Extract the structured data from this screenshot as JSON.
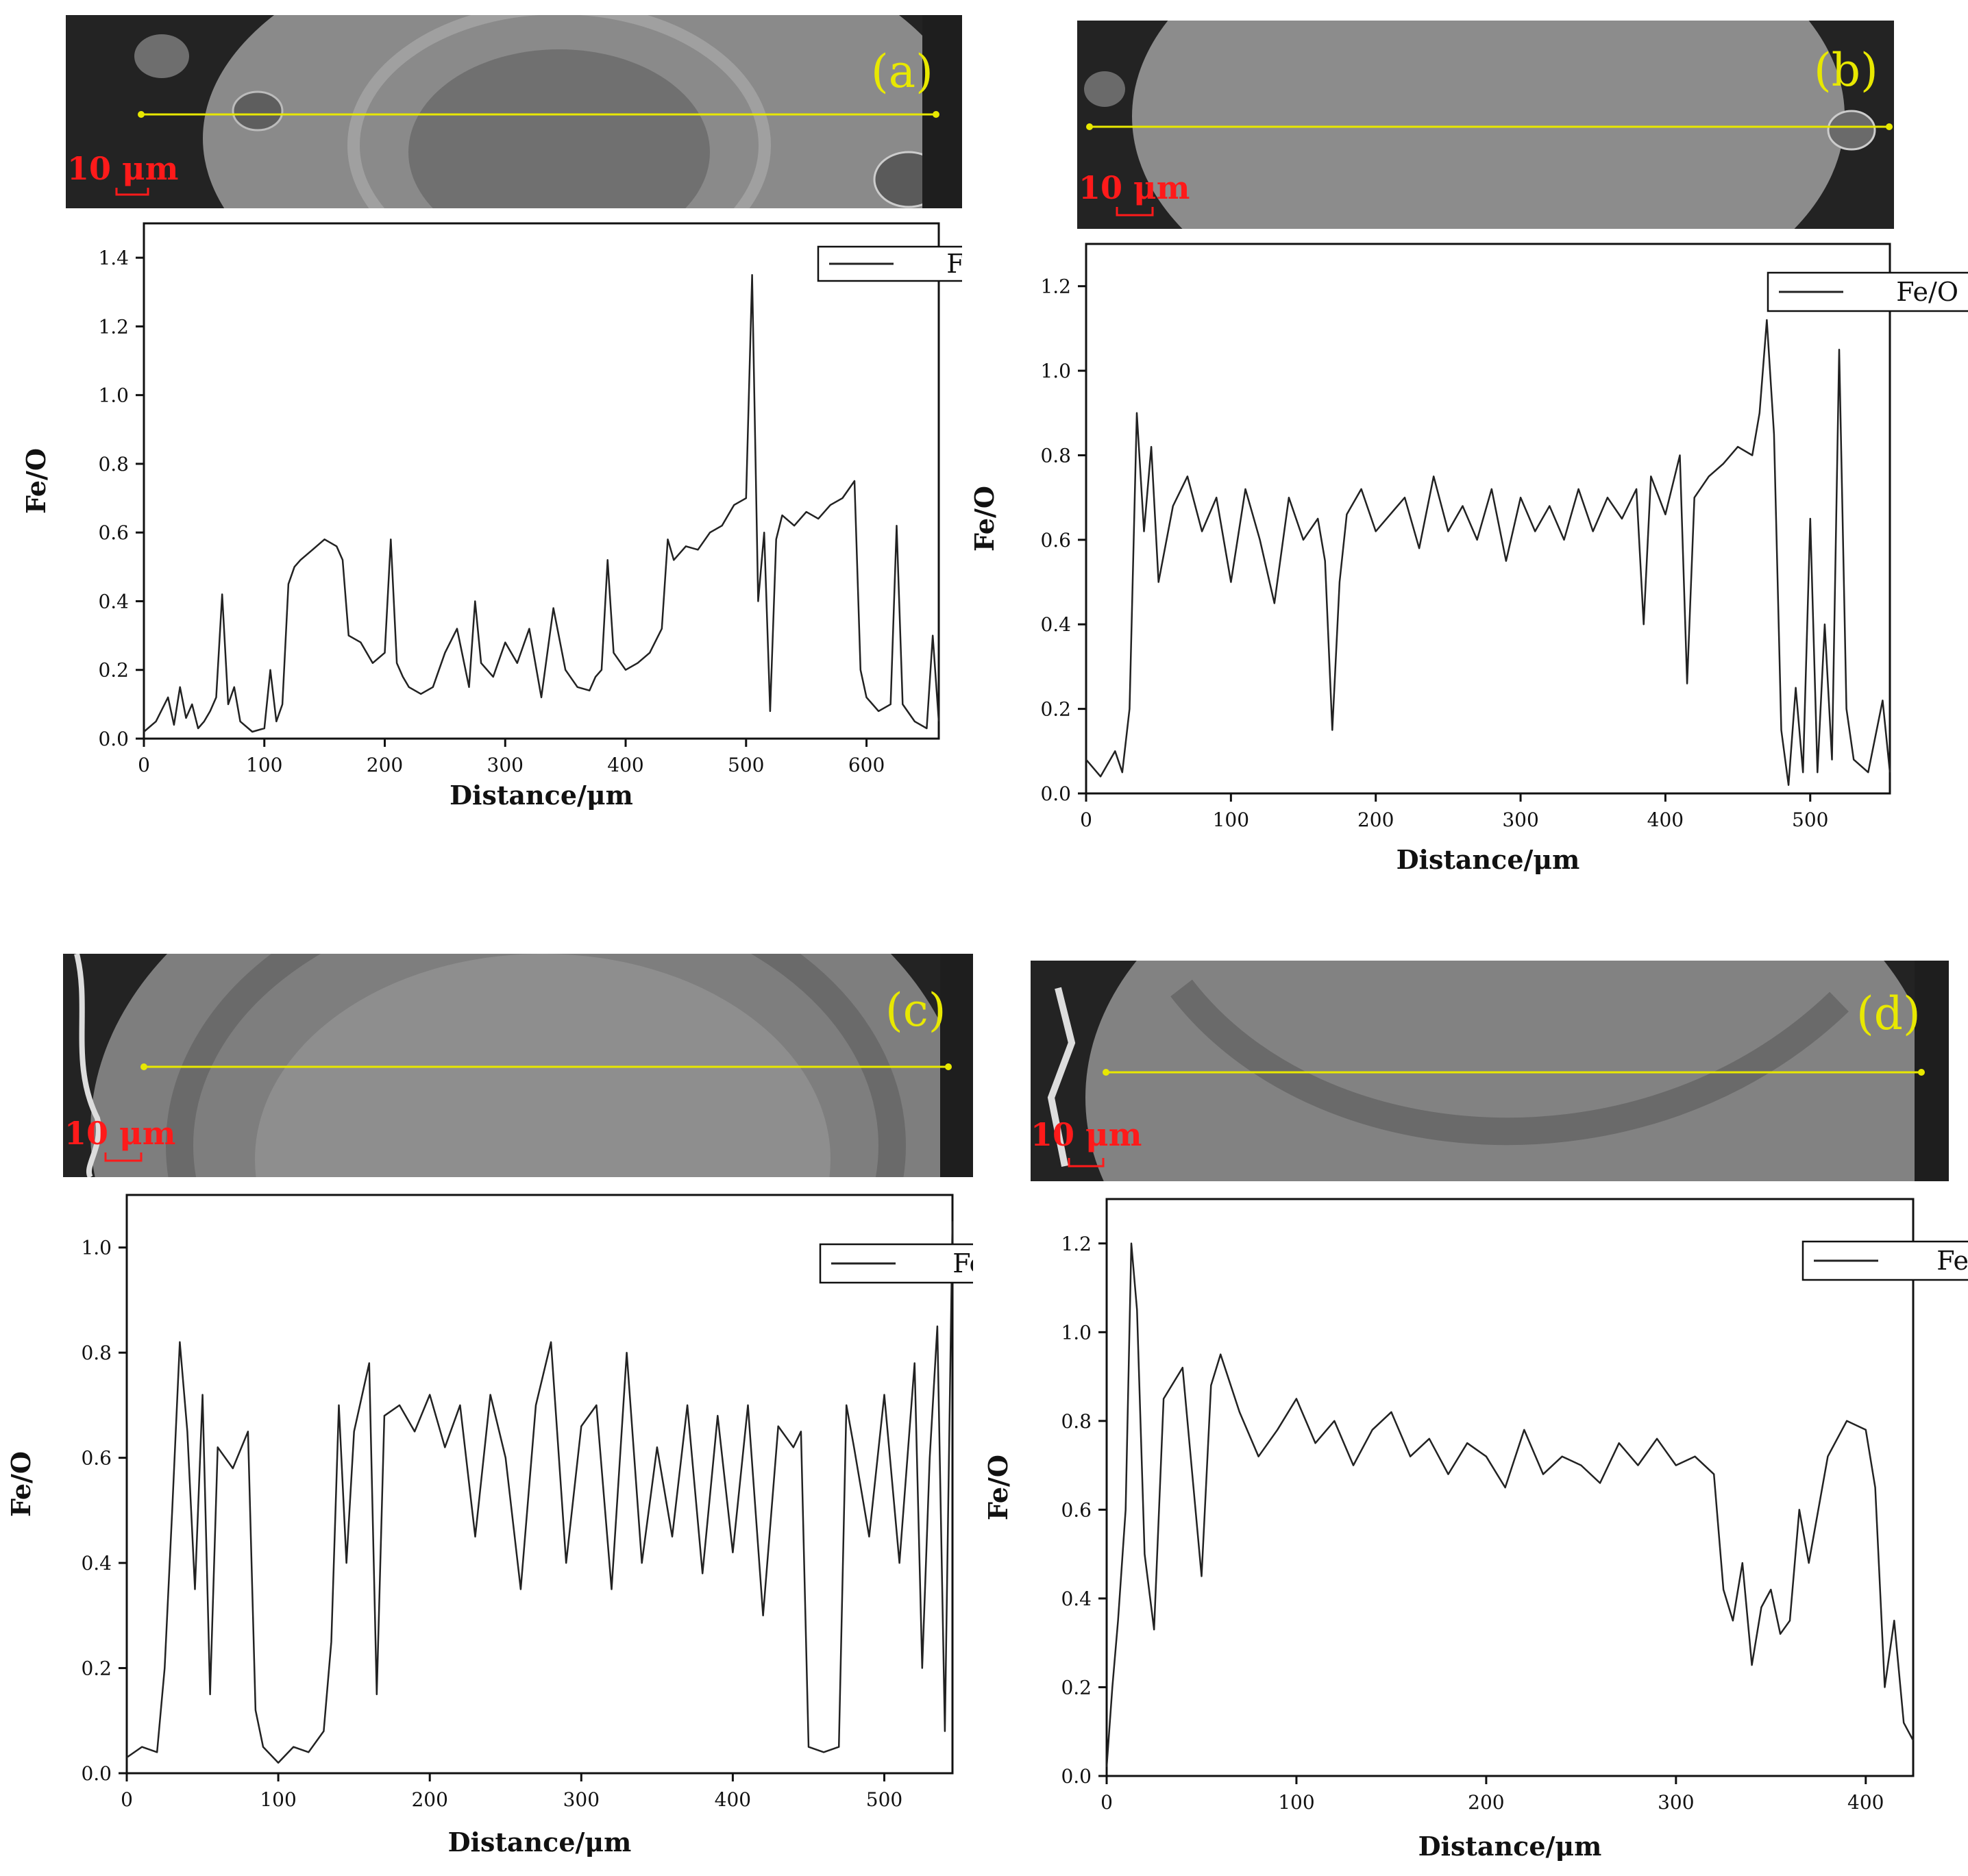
{
  "panels": [
    {
      "letter": "(a)",
      "scale_bar": "10 μm"
    },
    {
      "letter": "(b)",
      "scale_bar": "10 μm"
    },
    {
      "letter": "(c)",
      "scale_bar": "10 μm"
    },
    {
      "letter": "(d)",
      "scale_bar": "10 μm"
    }
  ],
  "colors": {
    "micro_matrix": "#8a8a8a",
    "micro_resin": "#232323",
    "scan_line": "#e8e800",
    "scale_label": "#ff1a1a",
    "trace": "#222222"
  },
  "chart_data": [
    {
      "type": "line",
      "panel": "(a)",
      "xlabel": "Distance/μm",
      "ylabel": "Fe/O",
      "legend": "Fe/O",
      "legend_position": "top-right",
      "grid": false,
      "xlim": [
        0,
        660
      ],
      "ylim": [
        0,
        1.5
      ],
      "xticks": [
        0,
        100,
        200,
        300,
        400,
        500,
        600
      ],
      "yticks": [
        0.0,
        0.2,
        0.4,
        0.6,
        0.8,
        1.0,
        1.2,
        1.4
      ],
      "series": [
        {
          "x": [
            0,
            10,
            20,
            25,
            30,
            35,
            40,
            45,
            50,
            55,
            60,
            65,
            70,
            75,
            80,
            90,
            100,
            105,
            110,
            115,
            120,
            125,
            130,
            140,
            150,
            160,
            165,
            170,
            180,
            190,
            200,
            205,
            210,
            215,
            220,
            230,
            240,
            250,
            260,
            270,
            275,
            280,
            290,
            300,
            310,
            320,
            330,
            340,
            350,
            360,
            370,
            375,
            380,
            385,
            390,
            400,
            410,
            420,
            430,
            435,
            440,
            450,
            460,
            470,
            480,
            490,
            500,
            505,
            510,
            515,
            520,
            525,
            530,
            540,
            550,
            560,
            570,
            580,
            590,
            595,
            600,
            610,
            620,
            625,
            630,
            640,
            650,
            655,
            660
          ],
          "y": [
            0.02,
            0.05,
            0.12,
            0.04,
            0.15,
            0.06,
            0.1,
            0.03,
            0.05,
            0.08,
            0.12,
            0.42,
            0.1,
            0.15,
            0.05,
            0.02,
            0.03,
            0.2,
            0.05,
            0.1,
            0.45,
            0.5,
            0.52,
            0.55,
            0.58,
            0.56,
            0.52,
            0.3,
            0.28,
            0.22,
            0.25,
            0.58,
            0.22,
            0.18,
            0.15,
            0.13,
            0.15,
            0.25,
            0.32,
            0.15,
            0.4,
            0.22,
            0.18,
            0.28,
            0.22,
            0.32,
            0.12,
            0.38,
            0.2,
            0.15,
            0.14,
            0.18,
            0.2,
            0.52,
            0.25,
            0.2,
            0.22,
            0.25,
            0.32,
            0.58,
            0.52,
            0.56,
            0.55,
            0.6,
            0.62,
            0.68,
            0.7,
            1.35,
            0.4,
            0.6,
            0.08,
            0.58,
            0.65,
            0.62,
            0.66,
            0.64,
            0.68,
            0.7,
            0.75,
            0.2,
            0.12,
            0.08,
            0.1,
            0.62,
            0.1,
            0.05,
            0.03,
            0.3,
            0.05
          ]
        }
      ]
    },
    {
      "type": "line",
      "panel": "(b)",
      "xlabel": "Distance/μm",
      "ylabel": "Fe/O",
      "legend": "Fe/O",
      "legend_position": "top-right",
      "grid": false,
      "xlim": [
        0,
        555
      ],
      "ylim": [
        0,
        1.3
      ],
      "xticks": [
        0,
        100,
        200,
        300,
        400,
        500
      ],
      "yticks": [
        0.0,
        0.2,
        0.4,
        0.6,
        0.8,
        1.0,
        1.2
      ],
      "series": [
        {
          "x": [
            0,
            10,
            20,
            25,
            30,
            35,
            40,
            45,
            50,
            60,
            70,
            80,
            90,
            100,
            110,
            120,
            130,
            140,
            150,
            160,
            165,
            170,
            175,
            180,
            190,
            200,
            210,
            220,
            230,
            240,
            250,
            260,
            270,
            280,
            290,
            300,
            310,
            320,
            330,
            340,
            350,
            360,
            370,
            380,
            385,
            390,
            400,
            410,
            415,
            420,
            430,
            440,
            450,
            460,
            465,
            470,
            475,
            480,
            485,
            490,
            495,
            500,
            505,
            510,
            515,
            520,
            525,
            530,
            540,
            550,
            555
          ],
          "y": [
            0.08,
            0.04,
            0.1,
            0.05,
            0.2,
            0.9,
            0.62,
            0.82,
            0.5,
            0.68,
            0.75,
            0.62,
            0.7,
            0.5,
            0.72,
            0.6,
            0.45,
            0.7,
            0.6,
            0.65,
            0.55,
            0.15,
            0.5,
            0.66,
            0.72,
            0.62,
            0.66,
            0.7,
            0.58,
            0.75,
            0.62,
            0.68,
            0.6,
            0.72,
            0.55,
            0.7,
            0.62,
            0.68,
            0.6,
            0.72,
            0.62,
            0.7,
            0.65,
            0.72,
            0.4,
            0.75,
            0.66,
            0.8,
            0.26,
            0.7,
            0.75,
            0.78,
            0.82,
            0.8,
            0.9,
            1.12,
            0.85,
            0.15,
            0.02,
            0.25,
            0.05,
            0.65,
            0.05,
            0.4,
            0.08,
            1.05,
            0.2,
            0.08,
            0.05,
            0.22,
            0.05
          ]
        }
      ]
    },
    {
      "type": "line",
      "panel": "(c)",
      "xlabel": "Distance/μm",
      "ylabel": "Fe/O",
      "legend": "Fe/O",
      "legend_position": "top-right",
      "grid": false,
      "xlim": [
        0,
        545
      ],
      "ylim": [
        0,
        1.1
      ],
      "xticks": [
        0,
        100,
        200,
        300,
        400,
        500
      ],
      "yticks": [
        0.0,
        0.2,
        0.4,
        0.6,
        0.8,
        1.0
      ],
      "series": [
        {
          "x": [
            0,
            10,
            20,
            25,
            30,
            35,
            40,
            45,
            50,
            55,
            60,
            70,
            80,
            85,
            90,
            100,
            110,
            120,
            130,
            135,
            140,
            145,
            150,
            160,
            165,
            170,
            180,
            190,
            200,
            210,
            220,
            230,
            240,
            250,
            260,
            270,
            280,
            290,
            300,
            310,
            320,
            330,
            340,
            350,
            360,
            370,
            380,
            390,
            400,
            410,
            420,
            430,
            440,
            445,
            450,
            460,
            470,
            475,
            480,
            490,
            500,
            510,
            520,
            525,
            530,
            535,
            540,
            545
          ],
          "y": [
            0.03,
            0.05,
            0.04,
            0.2,
            0.5,
            0.82,
            0.65,
            0.35,
            0.72,
            0.15,
            0.62,
            0.58,
            0.65,
            0.12,
            0.05,
            0.02,
            0.05,
            0.04,
            0.08,
            0.25,
            0.7,
            0.4,
            0.65,
            0.78,
            0.15,
            0.68,
            0.7,
            0.65,
            0.72,
            0.62,
            0.7,
            0.45,
            0.72,
            0.6,
            0.35,
            0.7,
            0.82,
            0.4,
            0.66,
            0.7,
            0.35,
            0.8,
            0.4,
            0.62,
            0.45,
            0.7,
            0.38,
            0.68,
            0.42,
            0.7,
            0.3,
            0.66,
            0.62,
            0.65,
            0.05,
            0.04,
            0.05,
            0.7,
            0.62,
            0.45,
            0.72,
            0.4,
            0.78,
            0.2,
            0.6,
            0.85,
            0.08,
            1.05
          ]
        }
      ]
    },
    {
      "type": "line",
      "panel": "(d)",
      "xlabel": "Distance/μm",
      "ylabel": "Fe/O",
      "legend": "Fe/O",
      "legend_position": "top-right",
      "grid": false,
      "xlim": [
        0,
        425
      ],
      "ylim": [
        0,
        1.3
      ],
      "xticks": [
        0,
        100,
        200,
        300,
        400
      ],
      "yticks": [
        0.0,
        0.2,
        0.4,
        0.6,
        0.8,
        1.0,
        1.2
      ],
      "series": [
        {
          "x": [
            0,
            3,
            6,
            10,
            13,
            16,
            20,
            25,
            30,
            40,
            50,
            55,
            60,
            70,
            80,
            90,
            100,
            110,
            120,
            130,
            140,
            150,
            160,
            170,
            180,
            190,
            200,
            210,
            220,
            230,
            240,
            250,
            260,
            270,
            280,
            290,
            300,
            310,
            320,
            325,
            330,
            335,
            340,
            345,
            350,
            355,
            360,
            365,
            370,
            380,
            390,
            400,
            405,
            410,
            415,
            420,
            425
          ],
          "y": [
            0.02,
            0.2,
            0.35,
            0.6,
            1.2,
            1.05,
            0.5,
            0.33,
            0.85,
            0.92,
            0.45,
            0.88,
            0.95,
            0.82,
            0.72,
            0.78,
            0.85,
            0.75,
            0.8,
            0.7,
            0.78,
            0.82,
            0.72,
            0.76,
            0.68,
            0.75,
            0.72,
            0.65,
            0.78,
            0.68,
            0.72,
            0.7,
            0.66,
            0.75,
            0.7,
            0.76,
            0.7,
            0.72,
            0.68,
            0.42,
            0.35,
            0.48,
            0.25,
            0.38,
            0.42,
            0.32,
            0.35,
            0.6,
            0.48,
            0.72,
            0.8,
            0.78,
            0.65,
            0.2,
            0.35,
            0.12,
            0.08
          ]
        }
      ]
    }
  ]
}
